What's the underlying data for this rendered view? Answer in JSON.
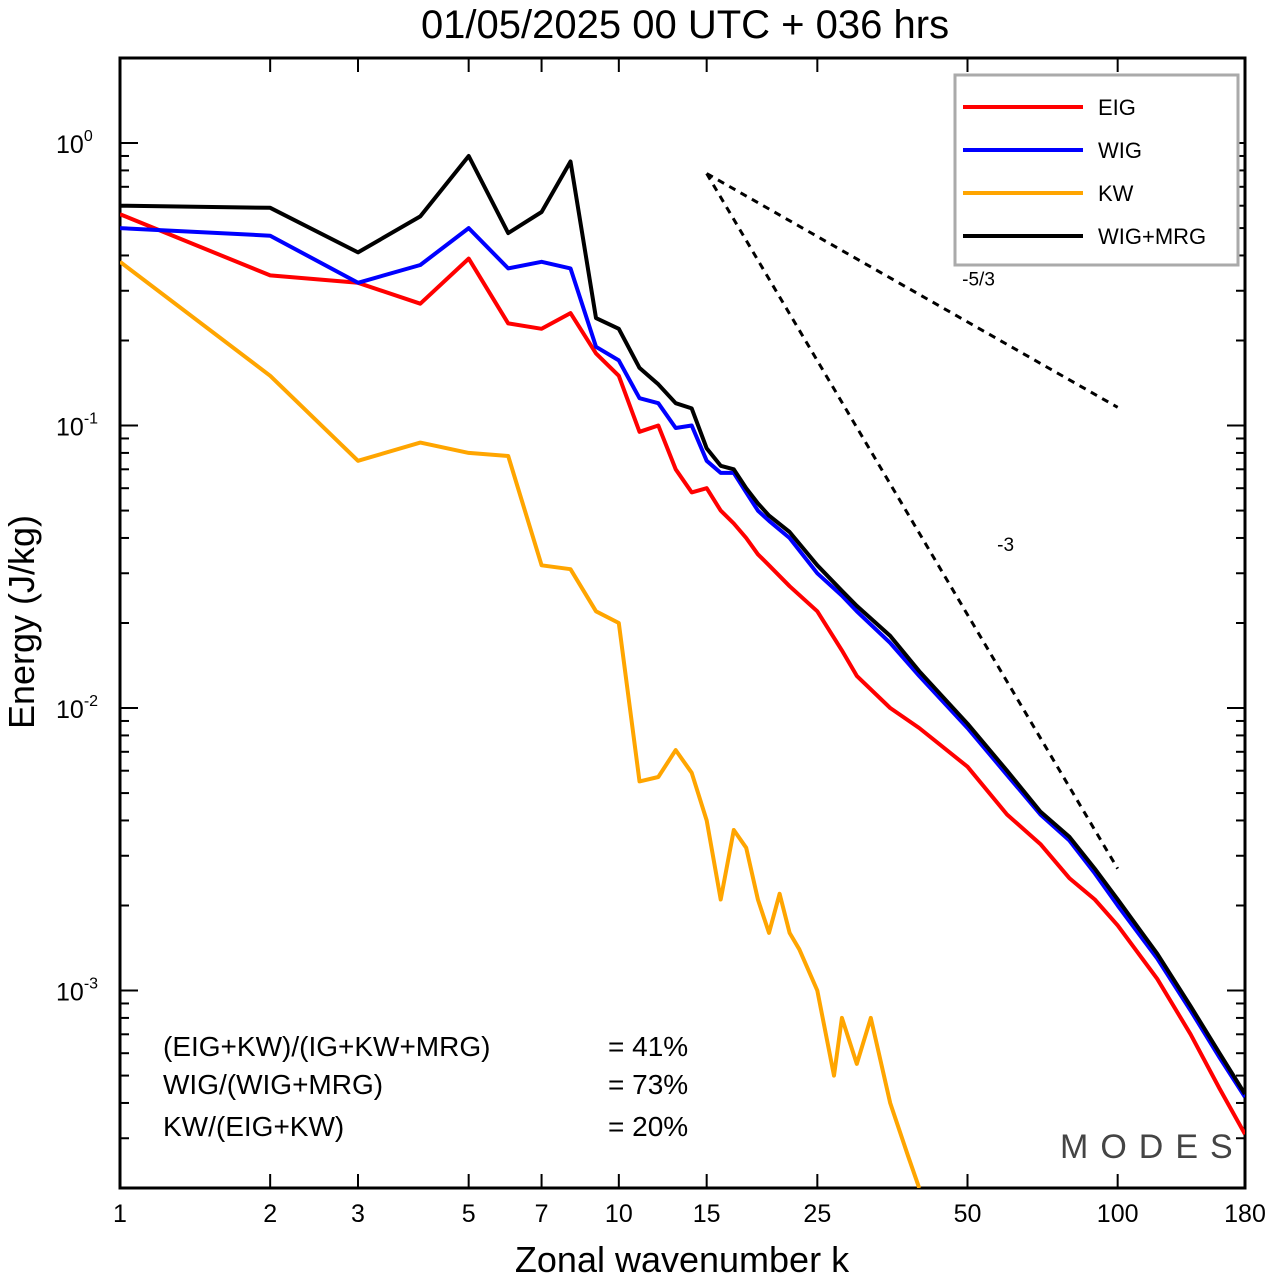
{
  "chart_data": {
    "type": "line",
    "title": "01/05/2025  00 UTC  + 036 hrs",
    "xlabel": "Zonal wavenumber k",
    "ylabel": "Energy (J/kg)",
    "x_scale": "log",
    "y_scale": "log",
    "xlim": [
      1,
      180
    ],
    "ylim": [
      0.0002,
      2
    ],
    "x_ticks": [
      1,
      2,
      3,
      5,
      7,
      10,
      15,
      25,
      50,
      100,
      180
    ],
    "y_ticks": [
      {
        "value": 1,
        "base": "10",
        "exp": "0"
      },
      {
        "value": 0.1,
        "base": "10",
        "exp": "-1"
      },
      {
        "value": 0.01,
        "base": "10",
        "exp": "-2"
      },
      {
        "value": 0.001,
        "base": "10",
        "exp": "-3"
      }
    ],
    "grid": false,
    "legend_position": "top-right",
    "series": [
      {
        "name": "EIG",
        "color": "#ff0000",
        "x": [
          1,
          2,
          3,
          4,
          5,
          6,
          7,
          8,
          9,
          10,
          11,
          12,
          13,
          14,
          15,
          16,
          17,
          18,
          19,
          20,
          22,
          25,
          28,
          30,
          35,
          40,
          50,
          60,
          70,
          80,
          90,
          100,
          120,
          140,
          160,
          180
        ],
        "y": [
          0.56,
          0.34,
          0.32,
          0.27,
          0.39,
          0.23,
          0.22,
          0.25,
          0.18,
          0.15,
          0.095,
          0.1,
          0.07,
          0.058,
          0.06,
          0.05,
          0.045,
          0.04,
          0.035,
          0.032,
          0.027,
          0.022,
          0.016,
          0.013,
          0.01,
          0.0085,
          0.0062,
          0.0042,
          0.0033,
          0.0025,
          0.0021,
          0.0017,
          0.0011,
          0.0007,
          0.00045,
          0.00031
        ]
      },
      {
        "name": "WIG",
        "color": "#0000ff",
        "x": [
          1,
          2,
          3,
          4,
          5,
          6,
          7,
          8,
          9,
          10,
          11,
          12,
          13,
          14,
          15,
          16,
          17,
          18,
          19,
          20,
          22,
          25,
          28,
          30,
          35,
          40,
          50,
          60,
          70,
          80,
          90,
          100,
          120,
          140,
          160,
          180
        ],
        "y": [
          0.5,
          0.47,
          0.32,
          0.37,
          0.5,
          0.36,
          0.38,
          0.36,
          0.19,
          0.17,
          0.125,
          0.12,
          0.098,
          0.1,
          0.075,
          0.068,
          0.068,
          0.058,
          0.05,
          0.046,
          0.04,
          0.03,
          0.025,
          0.022,
          0.017,
          0.013,
          0.0085,
          0.0058,
          0.0042,
          0.0034,
          0.0026,
          0.002,
          0.0013,
          0.00085,
          0.00058,
          0.00042
        ]
      },
      {
        "name": "KW",
        "color": "#ffa500",
        "x": [
          1,
          2,
          3,
          4,
          5,
          6,
          7,
          8,
          9,
          10,
          11,
          12,
          13,
          14,
          15,
          16,
          17,
          18,
          19,
          20,
          21,
          22,
          23,
          25,
          27,
          28,
          30,
          32,
          35,
          38,
          40
        ],
        "y": [
          0.38,
          0.15,
          0.075,
          0.087,
          0.08,
          0.078,
          0.032,
          0.031,
          0.022,
          0.02,
          0.0055,
          0.0057,
          0.0071,
          0.0059,
          0.004,
          0.0021,
          0.0037,
          0.0032,
          0.0021,
          0.0016,
          0.0022,
          0.0016,
          0.0014,
          0.001,
          0.0005,
          0.0008,
          0.00055,
          0.0008,
          0.0004,
          0.00026,
          0.0002
        ]
      },
      {
        "name": "WIG+MRG",
        "color": "#000000",
        "x": [
          1,
          2,
          3,
          4,
          5,
          6,
          7,
          8,
          9,
          10,
          11,
          12,
          13,
          14,
          15,
          16,
          17,
          18,
          19,
          20,
          22,
          25,
          28,
          30,
          35,
          40,
          50,
          60,
          70,
          80,
          90,
          100,
          120,
          140,
          160,
          180
        ],
        "y": [
          0.6,
          0.59,
          0.41,
          0.55,
          0.9,
          0.48,
          0.57,
          0.86,
          0.24,
          0.22,
          0.16,
          0.14,
          0.12,
          0.115,
          0.083,
          0.072,
          0.07,
          0.06,
          0.053,
          0.048,
          0.042,
          0.032,
          0.026,
          0.023,
          0.018,
          0.0135,
          0.0088,
          0.006,
          0.0043,
          0.0035,
          0.0027,
          0.0021,
          0.00135,
          0.00088,
          0.0006,
          0.00043
        ]
      }
    ],
    "reference_slopes": [
      {
        "label": "-5/3",
        "x": [
          15,
          100
        ],
        "y": [
          0.78,
          0.116
        ]
      },
      {
        "label": "-3",
        "x": [
          15,
          100
        ],
        "y": [
          0.78,
          0.0027
        ]
      }
    ],
    "annotations": [
      {
        "label": "(EIG+KW)/(IG+KW+MRG)",
        "value": "= 41%"
      },
      {
        "label": "WIG/(WIG+MRG)",
        "value": "= 73%"
      },
      {
        "label": "KW/(EIG+KW)",
        "value": "= 20%"
      }
    ],
    "watermark": "MODES"
  }
}
